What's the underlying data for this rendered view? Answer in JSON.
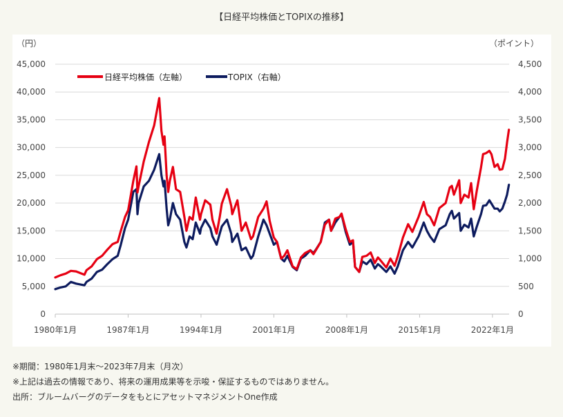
{
  "title": "【日経平均株価とTOPIXの推移】",
  "notes": [
    "※期間：1980年1月末～2023年7月末（月次）",
    "※上記は過去の情報であり、将来の運用成果等を示唆・保証するものではありません。",
    "出所：ブルームバーグのデータをもとにアセットマネジメントOne作成"
  ],
  "chart_data": {
    "type": "line",
    "title": "",
    "left_unit": "（円）",
    "right_unit": "（ポイント）",
    "xlim": [
      1980.0,
      2023.6
    ],
    "x_ticks": [
      {
        "x": 1980.0,
        "label": "1980年1月"
      },
      {
        "x": 1987.0,
        "label": "1987年1月"
      },
      {
        "x": 1994.0,
        "label": "1994年1月"
      },
      {
        "x": 2001.0,
        "label": "2001年1月"
      },
      {
        "x": 2008.0,
        "label": "2008年1月"
      },
      {
        "x": 2015.0,
        "label": "2015年1月"
      },
      {
        "x": 2022.0,
        "label": "2022年1月"
      }
    ],
    "y_left": {
      "min": 0,
      "max": 45000,
      "ticks": [
        "0",
        "5,000",
        "10,000",
        "15,000",
        "20,000",
        "25,000",
        "30,000",
        "35,000",
        "40,000",
        "45,000"
      ]
    },
    "y_right": {
      "min": 0,
      "max": 4500,
      "ticks": [
        "0",
        "500",
        "1,000",
        "1,500",
        "2,000",
        "2,500",
        "3,000",
        "3,500",
        "4,000",
        "4,500"
      ]
    },
    "grid": true,
    "legend_position": "top-left",
    "series": [
      {
        "name": "日経平均株価（左軸）",
        "axis": "left",
        "color": "#e60012",
        "points": [
          [
            1980.0,
            6600
          ],
          [
            1980.5,
            7000
          ],
          [
            1981.0,
            7300
          ],
          [
            1981.5,
            7800
          ],
          [
            1982.0,
            7700
          ],
          [
            1982.8,
            7100
          ],
          [
            1983.0,
            7900
          ],
          [
            1983.5,
            8600
          ],
          [
            1984.0,
            9900
          ],
          [
            1984.5,
            10500
          ],
          [
            1985.0,
            11600
          ],
          [
            1985.5,
            12600
          ],
          [
            1986.0,
            13000
          ],
          [
            1986.3,
            15000
          ],
          [
            1986.7,
            17500
          ],
          [
            1987.0,
            18700
          ],
          [
            1987.5,
            24000
          ],
          [
            1987.8,
            26600
          ],
          [
            1987.9,
            21900
          ],
          [
            1988.0,
            23000
          ],
          [
            1988.5,
            27500
          ],
          [
            1989.0,
            31000
          ],
          [
            1989.5,
            34000
          ],
          [
            1989.99,
            38900
          ],
          [
            1990.2,
            33000
          ],
          [
            1990.4,
            30500
          ],
          [
            1990.5,
            32000
          ],
          [
            1990.7,
            25000
          ],
          [
            1990.85,
            22000
          ],
          [
            1991.0,
            24000
          ],
          [
            1991.3,
            26500
          ],
          [
            1991.6,
            22500
          ],
          [
            1992.0,
            22000
          ],
          [
            1992.4,
            17500
          ],
          [
            1992.6,
            15000
          ],
          [
            1992.9,
            17500
          ],
          [
            1993.2,
            17000
          ],
          [
            1993.5,
            21000
          ],
          [
            1993.9,
            17000
          ],
          [
            1994.0,
            18000
          ],
          [
            1994.4,
            20500
          ],
          [
            1994.9,
            19700
          ],
          [
            1995.1,
            17000
          ],
          [
            1995.5,
            14500
          ],
          [
            1995.8,
            17500
          ],
          [
            1996.0,
            19900
          ],
          [
            1996.5,
            22500
          ],
          [
            1996.9,
            19500
          ],
          [
            1997.0,
            18000
          ],
          [
            1997.5,
            20500
          ],
          [
            1997.9,
            15000
          ],
          [
            1998.3,
            16500
          ],
          [
            1998.8,
            13500
          ],
          [
            1999.0,
            14000
          ],
          [
            1999.5,
            17500
          ],
          [
            2000.0,
            19000
          ],
          [
            2000.3,
            20300
          ],
          [
            2000.6,
            16800
          ],
          [
            2000.9,
            14500
          ],
          [
            2001.0,
            13800
          ],
          [
            2001.3,
            13000
          ],
          [
            2001.7,
            10000
          ],
          [
            2002.0,
            10500
          ],
          [
            2002.3,
            11500
          ],
          [
            2002.8,
            8600
          ],
          [
            2003.2,
            8100
          ],
          [
            2003.6,
            10200
          ],
          [
            2004.0,
            11000
          ],
          [
            2004.5,
            11500
          ],
          [
            2004.8,
            10800
          ],
          [
            2005.0,
            11400
          ],
          [
            2005.5,
            13000
          ],
          [
            2005.9,
            16100
          ],
          [
            2006.3,
            17000
          ],
          [
            2006.5,
            15000
          ],
          [
            2006.9,
            17200
          ],
          [
            2007.3,
            17500
          ],
          [
            2007.5,
            18100
          ],
          [
            2007.9,
            15300
          ],
          [
            2008.3,
            13000
          ],
          [
            2008.6,
            13300
          ],
          [
            2008.8,
            8500
          ],
          [
            2009.2,
            7600
          ],
          [
            2009.5,
            10300
          ],
          [
            2009.9,
            10500
          ],
          [
            2010.3,
            11100
          ],
          [
            2010.7,
            9200
          ],
          [
            2011.0,
            10200
          ],
          [
            2011.2,
            9800
          ],
          [
            2011.8,
            8400
          ],
          [
            2012.2,
            10000
          ],
          [
            2012.6,
            8700
          ],
          [
            2012.9,
            10400
          ],
          [
            2013.4,
            13800
          ],
          [
            2013.9,
            16200
          ],
          [
            2014.3,
            14800
          ],
          [
            2014.9,
            17500
          ],
          [
            2015.4,
            20200
          ],
          [
            2015.7,
            18000
          ],
          [
            2016.0,
            17500
          ],
          [
            2016.4,
            16000
          ],
          [
            2016.9,
            19100
          ],
          [
            2017.5,
            20000
          ],
          [
            2017.9,
            22800
          ],
          [
            2018.1,
            23100
          ],
          [
            2018.3,
            21500
          ],
          [
            2018.8,
            24100
          ],
          [
            2018.95,
            20000
          ],
          [
            2019.3,
            21500
          ],
          [
            2019.7,
            21000
          ],
          [
            2019.95,
            23600
          ],
          [
            2020.2,
            18900
          ],
          [
            2020.5,
            22300
          ],
          [
            2020.9,
            26400
          ],
          [
            2021.1,
            28800
          ],
          [
            2021.4,
            29000
          ],
          [
            2021.7,
            29400
          ],
          [
            2021.9,
            28800
          ],
          [
            2022.2,
            26500
          ],
          [
            2022.5,
            27000
          ],
          [
            2022.7,
            26000
          ],
          [
            2022.95,
            26100
          ],
          [
            2023.2,
            28000
          ],
          [
            2023.4,
            30900
          ],
          [
            2023.58,
            33200
          ]
        ]
      },
      {
        "name": "TOPIX（右軸）",
        "axis": "right",
        "color": "#0d1b5e",
        "points": [
          [
            1980.0,
            450
          ],
          [
            1980.5,
            480
          ],
          [
            1981.0,
            500
          ],
          [
            1981.5,
            580
          ],
          [
            1982.0,
            550
          ],
          [
            1982.8,
            520
          ],
          [
            1983.0,
            580
          ],
          [
            1983.5,
            640
          ],
          [
            1984.0,
            760
          ],
          [
            1984.5,
            800
          ],
          [
            1985.0,
            900
          ],
          [
            1985.5,
            990
          ],
          [
            1986.0,
            1050
          ],
          [
            1986.3,
            1250
          ],
          [
            1986.7,
            1550
          ],
          [
            1987.0,
            1700
          ],
          [
            1987.5,
            2200
          ],
          [
            1987.8,
            2250
          ],
          [
            1987.9,
            1800
          ],
          [
            1988.0,
            2000
          ],
          [
            1988.5,
            2300
          ],
          [
            1989.0,
            2400
          ],
          [
            1989.5,
            2600
          ],
          [
            1989.99,
            2880
          ],
          [
            1990.2,
            2500
          ],
          [
            1990.4,
            2300
          ],
          [
            1990.5,
            2400
          ],
          [
            1990.7,
            1900
          ],
          [
            1990.85,
            1600
          ],
          [
            1991.0,
            1700
          ],
          [
            1991.3,
            2000
          ],
          [
            1991.6,
            1800
          ],
          [
            1992.0,
            1700
          ],
          [
            1992.4,
            1300
          ],
          [
            1992.6,
            1200
          ],
          [
            1992.9,
            1400
          ],
          [
            1993.2,
            1350
          ],
          [
            1993.5,
            1650
          ],
          [
            1993.9,
            1450
          ],
          [
            1994.0,
            1550
          ],
          [
            1994.4,
            1700
          ],
          [
            1994.9,
            1550
          ],
          [
            1995.1,
            1400
          ],
          [
            1995.5,
            1250
          ],
          [
            1995.8,
            1450
          ],
          [
            1996.0,
            1580
          ],
          [
            1996.5,
            1700
          ],
          [
            1996.9,
            1450
          ],
          [
            1997.0,
            1300
          ],
          [
            1997.5,
            1450
          ],
          [
            1997.9,
            1150
          ],
          [
            1998.3,
            1200
          ],
          [
            1998.8,
            1000
          ],
          [
            1999.0,
            1050
          ],
          [
            1999.5,
            1400
          ],
          [
            2000.0,
            1700
          ],
          [
            2000.3,
            1600
          ],
          [
            2000.6,
            1450
          ],
          [
            2000.9,
            1300
          ],
          [
            2001.0,
            1250
          ],
          [
            2001.3,
            1300
          ],
          [
            2001.7,
            1000
          ],
          [
            2002.0,
            950
          ],
          [
            2002.3,
            1050
          ],
          [
            2002.8,
            850
          ],
          [
            2003.2,
            790
          ],
          [
            2003.6,
            1000
          ],
          [
            2004.0,
            1050
          ],
          [
            2004.5,
            1150
          ],
          [
            2004.8,
            1100
          ],
          [
            2005.0,
            1150
          ],
          [
            2005.5,
            1300
          ],
          [
            2005.9,
            1650
          ],
          [
            2006.3,
            1700
          ],
          [
            2006.5,
            1500
          ],
          [
            2006.9,
            1650
          ],
          [
            2007.3,
            1750
          ],
          [
            2007.5,
            1800
          ],
          [
            2007.9,
            1480
          ],
          [
            2008.3,
            1250
          ],
          [
            2008.6,
            1300
          ],
          [
            2008.8,
            850
          ],
          [
            2009.2,
            760
          ],
          [
            2009.5,
            950
          ],
          [
            2009.9,
            900
          ],
          [
            2010.3,
            980
          ],
          [
            2010.7,
            820
          ],
          [
            2011.0,
            900
          ],
          [
            2011.2,
            870
          ],
          [
            2011.8,
            760
          ],
          [
            2012.2,
            860
          ],
          [
            2012.6,
            730
          ],
          [
            2012.9,
            860
          ],
          [
            2013.4,
            1150
          ],
          [
            2013.9,
            1300
          ],
          [
            2014.3,
            1200
          ],
          [
            2014.9,
            1400
          ],
          [
            2015.4,
            1650
          ],
          [
            2015.7,
            1500
          ],
          [
            2016.0,
            1400
          ],
          [
            2016.4,
            1300
          ],
          [
            2016.9,
            1530
          ],
          [
            2017.5,
            1600
          ],
          [
            2017.9,
            1800
          ],
          [
            2018.1,
            1860
          ],
          [
            2018.3,
            1720
          ],
          [
            2018.8,
            1820
          ],
          [
            2018.95,
            1500
          ],
          [
            2019.3,
            1610
          ],
          [
            2019.7,
            1560
          ],
          [
            2019.95,
            1720
          ],
          [
            2020.2,
            1400
          ],
          [
            2020.5,
            1580
          ],
          [
            2020.9,
            1800
          ],
          [
            2021.1,
            1950
          ],
          [
            2021.4,
            1960
          ],
          [
            2021.7,
            2050
          ],
          [
            2021.9,
            1990
          ],
          [
            2022.2,
            1900
          ],
          [
            2022.5,
            1900
          ],
          [
            2022.7,
            1850
          ],
          [
            2022.95,
            1900
          ],
          [
            2023.2,
            2030
          ],
          [
            2023.4,
            2150
          ],
          [
            2023.58,
            2330
          ]
        ]
      }
    ]
  }
}
